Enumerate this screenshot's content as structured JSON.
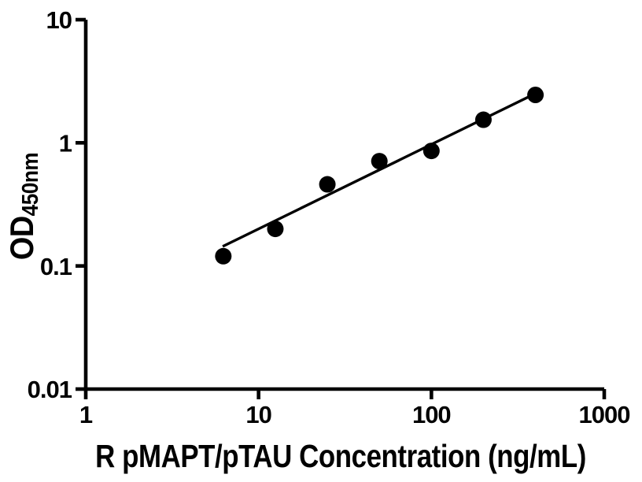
{
  "figure": {
    "description": "ELISA standard curve plot",
    "background_color": "#ffffff",
    "foreground_color": "#000000"
  },
  "chart_data": {
    "type": "scatter",
    "title": "",
    "xlabel": "R pMAPT/pTAU Concentration (ng/mL)",
    "ylabel_main": "OD",
    "ylabel_sub": "450nm",
    "x_scale": "log",
    "y_scale": "log",
    "xlim": [
      1,
      1000
    ],
    "ylim": [
      0.01,
      10
    ],
    "x_tick_values": [
      1,
      10,
      100,
      1000
    ],
    "x_tick_labels": [
      "1",
      "10",
      "100",
      "1000"
    ],
    "y_tick_values": [
      0.01,
      0.1,
      1,
      10
    ],
    "y_tick_labels": [
      "0.01",
      "0.1",
      "1",
      "10"
    ],
    "grid": false,
    "legend": "none",
    "series": [
      {
        "name": "standard-curve-points",
        "type": "scatter",
        "marker": "filled-circle",
        "color": "#000000",
        "x": [
          6.25,
          12.5,
          25,
          50,
          100,
          200,
          400
        ],
        "y": [
          0.12,
          0.2,
          0.46,
          0.71,
          0.86,
          1.54,
          2.45
        ]
      },
      {
        "name": "fit-line",
        "type": "line",
        "color": "#000000",
        "x": [
          6.2,
          406
        ],
        "y": [
          0.144,
          2.54
        ]
      }
    ]
  }
}
